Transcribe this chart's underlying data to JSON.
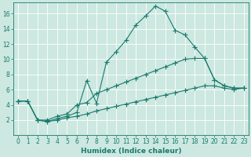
{
  "xlabel": "Humidex (Indice chaleur)",
  "background_color": "#cce8e0",
  "grid_color": "#ffffff",
  "line_color": "#1a7a6e",
  "xlim": [
    -0.5,
    23.5
  ],
  "ylim": [
    0,
    17.5
  ],
  "xticks": [
    0,
    1,
    2,
    3,
    4,
    5,
    6,
    7,
    8,
    9,
    10,
    11,
    12,
    13,
    14,
    15,
    16,
    17,
    18,
    19,
    20,
    21,
    22,
    23
  ],
  "yticks": [
    2,
    4,
    6,
    8,
    10,
    12,
    14,
    16
  ],
  "line1_x": [
    0,
    1,
    2,
    3,
    4,
    5,
    6,
    7,
    8,
    9,
    10,
    11,
    12,
    13,
    14,
    15,
    16,
    17,
    18,
    19,
    20,
    21,
    22,
    23
  ],
  "line1_y": [
    4.5,
    4.5,
    2.0,
    1.8,
    2.2,
    2.5,
    3.0,
    7.2,
    4.2,
    9.6,
    11.0,
    12.5,
    14.5,
    15.7,
    17.0,
    16.3,
    13.8,
    13.2,
    11.6,
    10.1,
    7.3,
    6.5,
    6.2,
    6.2
  ],
  "line2_x": [
    0,
    1,
    2,
    3,
    4,
    5,
    6,
    7,
    8,
    9,
    10,
    11,
    12,
    13,
    14,
    15,
    16,
    17,
    18,
    19,
    20,
    21,
    22,
    23
  ],
  "line2_y": [
    4.5,
    4.5,
    2.0,
    2.0,
    2.5,
    2.8,
    4.0,
    4.3,
    5.5,
    6.0,
    6.5,
    7.0,
    7.5,
    8.0,
    8.5,
    9.0,
    9.5,
    10.0,
    10.1,
    10.1,
    7.3,
    6.5,
    6.2,
    6.2
  ],
  "line3_x": [
    0,
    1,
    2,
    3,
    4,
    5,
    6,
    7,
    8,
    9,
    10,
    11,
    12,
    13,
    14,
    15,
    16,
    17,
    18,
    19,
    20,
    21,
    22,
    23
  ],
  "line3_y": [
    4.5,
    4.5,
    2.0,
    1.8,
    2.0,
    2.3,
    2.5,
    2.8,
    3.2,
    3.5,
    3.8,
    4.1,
    4.4,
    4.7,
    5.0,
    5.3,
    5.6,
    5.9,
    6.2,
    6.5,
    6.5,
    6.2,
    6.0,
    6.2
  ]
}
